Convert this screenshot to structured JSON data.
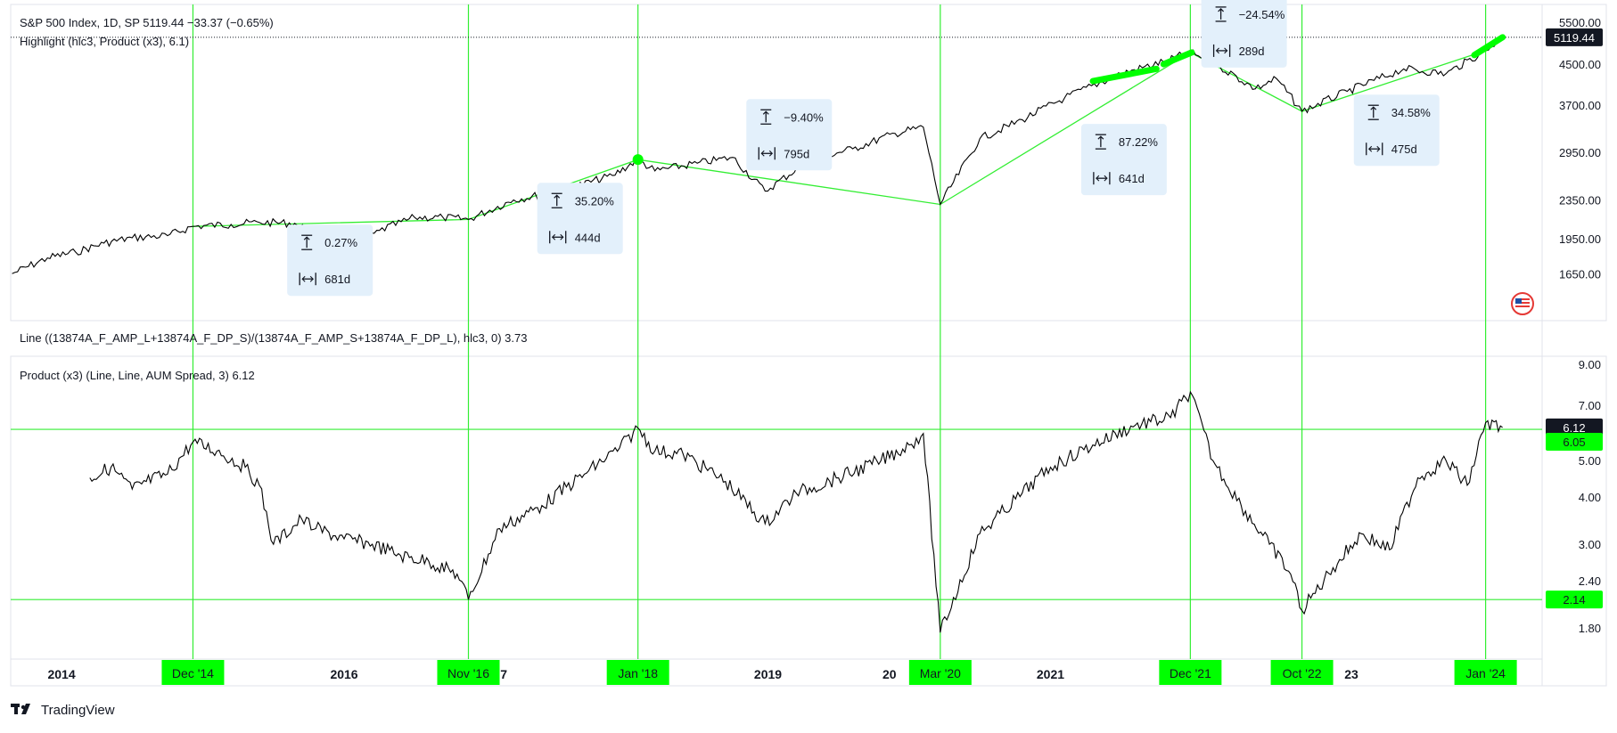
{
  "colors": {
    "accent_green": "#00ff00",
    "line_green": "#33ee33",
    "price_line": "#000000",
    "panel_border": "#e0e3eb",
    "box_fill": "#e3f0fb",
    "label_dark": "#131722"
  },
  "legend": {
    "top_line1": "S&P 500 Index, 1D, SP  5119.44  −33.37 (−0.65%)",
    "top_line2": "Highlight (hlc3, Product (x3), 6.1)",
    "middle_line": "Line ((13874A_F_AMP_L+13874A_F_DP_S)/(13874A_F_AMP_S+13874A_F_DP_L), hlc3, 0)  3.73",
    "bottom_line": "Product (x3) (Line, Line, AUM Spread, 3)  6.12"
  },
  "brand": {
    "text": "TradingView",
    "icon": "tradingview-logo-icon"
  },
  "flag_icon": "us-flag-icon",
  "time_axis": {
    "year_labels": [
      {
        "label": "2014",
        "t": 2014.0
      },
      {
        "label": "2016",
        "t": 2016.0
      },
      {
        "label": "7",
        "t": 2017.13
      },
      {
        "label": "2019",
        "t": 2019.0
      },
      {
        "label": "20",
        "t": 2019.86
      },
      {
        "label": "2021",
        "t": 2021.0
      },
      {
        "label": "23",
        "t": 2023.13
      }
    ],
    "highlight_labels": [
      {
        "label": "Dec '14",
        "t": 2014.93
      },
      {
        "label": "Nov '16",
        "t": 2016.88
      },
      {
        "label": "Jan '18",
        "t": 2018.08
      },
      {
        "label": "Mar '20",
        "t": 2020.22
      },
      {
        "label": "Dec '21",
        "t": 2021.99
      },
      {
        "label": "Oct '22",
        "t": 2022.78
      },
      {
        "label": "Jan '24",
        "t": 2024.08
      }
    ]
  },
  "chart_data": [
    {
      "type": "line",
      "title": "S&P 500 Index, 1D, SP",
      "scale": "log",
      "y_ticks": [
        1650,
        1950,
        2350,
        2950,
        3700,
        4500,
        5500
      ],
      "y_tick_labels": [
        "1650.00",
        "1950.00",
        "2350.00",
        "2950.00",
        "3700.00",
        "4500.00",
        "5500.00"
      ],
      "last_value": 5119.44,
      "last_value_label": "5119.44",
      "series": [
        {
          "x": [
            2013.65,
            2013.9,
            2014.1,
            2014.3,
            2014.5,
            2014.75,
            2014.93,
            2015.2,
            2015.4,
            2015.65,
            2015.8,
            2016.1,
            2016.25,
            2016.5,
            2016.7,
            2016.88,
            2017.2,
            2017.5,
            2017.9,
            2018.08,
            2018.2,
            2018.5,
            2018.75,
            2018.98,
            2019.3,
            2019.6,
            2019.9,
            2020.1,
            2020.22,
            2020.5,
            2020.8,
            2021.1,
            2021.5,
            2021.8,
            2021.99,
            2022.2,
            2022.45,
            2022.6,
            2022.78,
            2023.1,
            2023.5,
            2023.8,
            2024.08,
            2024.2
          ],
          "y": [
            1650,
            1780,
            1830,
            1910,
            1960,
            1980,
            2070,
            2090,
            2110,
            2100,
            1990,
            1880,
            2030,
            2160,
            2160,
            2140,
            2350,
            2440,
            2640,
            2850,
            2700,
            2800,
            2880,
            2450,
            2850,
            3000,
            3230,
            3330,
            2300,
            3150,
            3450,
            3830,
            4300,
            4550,
            4760,
            4450,
            4000,
            4200,
            3590,
            3950,
            4400,
            4300,
            4800,
            5119
          ]
        }
      ]
    },
    {
      "type": "line",
      "title": "Product (x3) (Line, Line, AUM Spread, 3)",
      "scale": "log",
      "y_ticks": [
        1.8,
        2.4,
        3.0,
        4.0,
        5.0,
        7.0,
        9.0
      ],
      "y_tick_labels": [
        "1.80",
        "2.40",
        "3.00",
        "4.00",
        "5.00",
        "7.00",
        "9.00"
      ],
      "last_value": 6.12,
      "last_value_label": "6.12",
      "upper_threshold": 6.05,
      "upper_threshold_label": "6.05",
      "lower_threshold": 2.14,
      "lower_threshold_label": "2.14",
      "series": [
        {
          "x": [
            2014.2,
            2014.35,
            2014.5,
            2014.6,
            2014.75,
            2014.93,
            2015.1,
            2015.3,
            2015.4,
            2015.5,
            2015.7,
            2015.8,
            2016.0,
            2016.2,
            2016.4,
            2016.6,
            2016.8,
            2016.88,
            2017.1,
            2017.4,
            2017.7,
            2017.95,
            2018.08,
            2018.2,
            2018.4,
            2018.7,
            2018.98,
            2019.2,
            2019.5,
            2019.8,
            2020.0,
            2020.1,
            2020.22,
            2020.5,
            2020.8,
            2021.0,
            2021.3,
            2021.6,
            2021.85,
            2021.99,
            2022.15,
            2022.35,
            2022.55,
            2022.7,
            2022.78,
            2023.0,
            2023.2,
            2023.4,
            2023.6,
            2023.8,
            2023.95,
            2024.08,
            2024.2
          ],
          "y": [
            4.5,
            4.8,
            4.2,
            4.4,
            4.6,
            5.6,
            5.3,
            4.8,
            4.3,
            3.0,
            3.5,
            3.3,
            3.1,
            3.0,
            2.8,
            2.7,
            2.5,
            2.14,
            3.3,
            3.8,
            4.6,
            5.4,
            6.1,
            5.3,
            5.2,
            4.4,
            3.4,
            4.1,
            4.5,
            5.0,
            5.5,
            5.9,
            1.75,
            3.2,
            4.1,
            4.8,
            5.5,
            6.2,
            6.5,
            7.6,
            5.0,
            3.8,
            3.0,
            2.5,
            2.0,
            2.6,
            3.2,
            2.9,
            4.5,
            5.0,
            4.3,
            6.3,
            6.12
          ]
        }
      ]
    },
    {
      "type": "line",
      "title": "Highlight zigzag",
      "series": [
        {
          "x": [
            2014.93,
            2016.88,
            2018.08,
            2020.22,
            2021.99,
            2022.78,
            2024.08
          ],
          "y": [
            2070,
            2140,
            2850,
            2300,
            4760,
            3590,
            4800
          ]
        }
      ]
    }
  ],
  "measure_boxes": [
    {
      "percent": "0.27%",
      "days": "681d",
      "t": 2015.9,
      "price": 1760
    },
    {
      "percent": "35.20%",
      "days": "444d",
      "t": 2017.67,
      "price": 2150
    },
    {
      "percent": "−9.40%",
      "days": "795d",
      "t": 2019.15,
      "price": 3210
    },
    {
      "percent": "87.22%",
      "days": "641d",
      "t": 2021.52,
      "price": 2850
    },
    {
      "percent": "−24.54%",
      "days": "289d",
      "t": 2022.37,
      "price": 5250
    },
    {
      "percent": "34.58%",
      "days": "475d",
      "t": 2023.45,
      "price": 3280
    }
  ],
  "box_icons": {
    "percent_icon": "vertical-range-icon",
    "days_icon": "horizontal-range-icon"
  }
}
